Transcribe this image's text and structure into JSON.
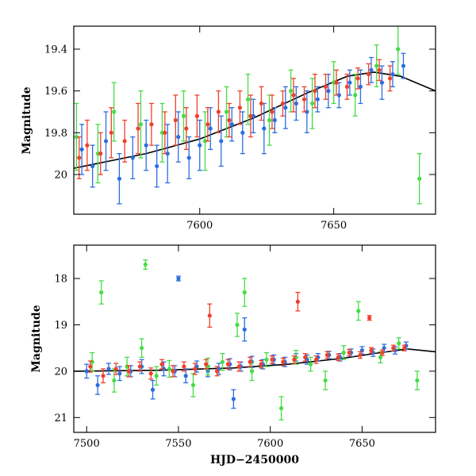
{
  "chart_data": [
    {
      "type": "scatter",
      "title": "",
      "xlabel": "",
      "ylabel": "Magnitude",
      "xlim": [
        7553,
        7688
      ],
      "ylim": [
        20.19,
        19.29
      ],
      "y_inverted": true,
      "grid": false,
      "xticks": [
        7600,
        7650
      ],
      "xtick_labels": [
        "7600",
        "7650"
      ],
      "yticks": [
        19.4,
        19.6,
        19.8,
        20.0
      ],
      "ytick_labels": [
        "19.4",
        "19.6",
        "19.8",
        "20"
      ],
      "series": [
        {
          "color": "#2a6ee0",
          "marker": "circle-with-errorbar",
          "x": [
            7556,
            7560,
            7565,
            7570,
            7575,
            7580,
            7584,
            7588,
            7592,
            7596,
            7600,
            7604,
            7608,
            7612,
            7616,
            7620,
            7624,
            7628,
            7632,
            7636,
            7640,
            7644,
            7648,
            7652,
            7656,
            7660,
            7664,
            7668,
            7672,
            7676
          ],
          "y": [
            19.88,
            19.96,
            19.84,
            20.02,
            19.92,
            19.86,
            19.96,
            19.9,
            19.82,
            19.92,
            19.86,
            19.78,
            19.84,
            19.76,
            19.8,
            19.72,
            19.78,
            19.74,
            19.68,
            19.66,
            19.7,
            19.64,
            19.6,
            19.62,
            19.56,
            19.58,
            19.5,
            19.56,
            19.52,
            19.48
          ],
          "yerr": [
            0.12,
            0.1,
            0.14,
            0.12,
            0.1,
            0.12,
            0.1,
            0.14,
            0.12,
            0.1,
            0.12,
            0.1,
            0.12,
            0.08,
            0.1,
            0.08,
            0.12,
            0.06,
            0.1,
            0.08,
            0.1,
            0.06,
            0.08,
            0.06,
            0.06,
            0.08,
            0.06,
            0.08,
            0.06,
            0.06
          ]
        },
        {
          "color": "#44dd44",
          "marker": "circle-with-errorbar",
          "x": [
            7554,
            7562,
            7568,
            7578,
            7586,
            7594,
            7602,
            7610,
            7618,
            7626,
            7634,
            7642,
            7650,
            7658,
            7666,
            7674,
            7682
          ],
          "y": [
            19.82,
            19.9,
            19.7,
            19.76,
            19.8,
            19.72,
            19.84,
            19.7,
            19.64,
            19.74,
            19.6,
            19.66,
            19.56,
            19.62,
            19.48,
            19.4,
            20.02
          ],
          "yerr": [
            0.16,
            0.14,
            0.14,
            0.16,
            0.14,
            0.12,
            0.14,
            0.12,
            0.12,
            0.12,
            0.1,
            0.12,
            0.1,
            0.1,
            0.1,
            0.12,
            0.12
          ]
        },
        {
          "color": "#f0402a",
          "marker": "circle-with-errorbar",
          "x": [
            7555,
            7558,
            7563,
            7567,
            7572,
            7577,
            7582,
            7587,
            7591,
            7595,
            7599,
            7603,
            7607,
            7611,
            7615,
            7619,
            7623,
            7627,
            7631,
            7635,
            7639,
            7643,
            7647,
            7651,
            7655,
            7659,
            7663,
            7667,
            7671
          ],
          "y": [
            19.92,
            19.86,
            19.9,
            19.8,
            19.84,
            19.78,
            19.76,
            19.8,
            19.74,
            19.78,
            19.72,
            19.76,
            19.7,
            19.74,
            19.68,
            19.72,
            19.66,
            19.7,
            19.66,
            19.62,
            19.64,
            19.6,
            19.58,
            19.56,
            19.58,
            19.54,
            19.52,
            19.5,
            19.54
          ],
          "yerr": [
            0.1,
            0.12,
            0.1,
            0.12,
            0.1,
            0.12,
            0.1,
            0.1,
            0.12,
            0.1,
            0.1,
            0.08,
            0.1,
            0.08,
            0.08,
            0.1,
            0.08,
            0.08,
            0.06,
            0.08,
            0.06,
            0.08,
            0.06,
            0.06,
            0.06,
            0.05,
            0.05,
            0.05,
            0.06
          ]
        }
      ],
      "model_curve": {
        "color": "#000000",
        "x": [
          7553,
          7580,
          7600,
          7620,
          7640,
          7655,
          7665,
          7675,
          7688
        ],
        "y": [
          19.97,
          19.9,
          19.83,
          19.73,
          19.61,
          19.53,
          19.51,
          19.53,
          19.6
        ]
      }
    },
    {
      "type": "scatter",
      "title": "",
      "xlabel": "HJD−2450000",
      "ylabel": "Magnitude",
      "xlim": [
        7493,
        7690
      ],
      "ylim": [
        21.32,
        17.28
      ],
      "y_inverted": true,
      "grid": false,
      "xticks": [
        7500,
        7550,
        7600,
        7650
      ],
      "xtick_labels": [
        "7500",
        "7550",
        "7600",
        "7650"
      ],
      "yticks": [
        18,
        19,
        20,
        21
      ],
      "ytick_labels": [
        "18",
        "19",
        "20",
        "21"
      ],
      "series": [
        {
          "color": "#2a6ee0",
          "marker": "circle-with-errorbar",
          "x": [
            7500,
            7506,
            7512,
            7518,
            7524,
            7530,
            7536,
            7542,
            7548,
            7554,
            7560,
            7566,
            7572,
            7578,
            7584,
            7590,
            7596,
            7602,
            7608,
            7614,
            7620,
            7626,
            7632,
            7638,
            7644,
            7650,
            7656,
            7662,
            7668,
            7674,
            7550,
            7580,
            7586
          ],
          "y": [
            20.0,
            20.3,
            19.95,
            20.05,
            20.0,
            19.9,
            20.4,
            19.95,
            20.0,
            20.1,
            19.9,
            20.0,
            19.95,
            19.85,
            19.9,
            19.8,
            19.85,
            19.75,
            19.8,
            19.7,
            19.75,
            19.7,
            19.65,
            19.7,
            19.6,
            19.55,
            19.6,
            19.5,
            19.55,
            19.45,
            18.0,
            20.6,
            19.1
          ],
          "yerr": [
            0.15,
            0.2,
            0.12,
            0.15,
            0.12,
            0.15,
            0.2,
            0.15,
            0.12,
            0.15,
            0.12,
            0.12,
            0.12,
            0.12,
            0.1,
            0.12,
            0.1,
            0.1,
            0.1,
            0.08,
            0.1,
            0.08,
            0.08,
            0.08,
            0.08,
            0.08,
            0.08,
            0.08,
            0.08,
            0.08,
            0.05,
            0.2,
            0.25
          ]
        },
        {
          "color": "#44dd44",
          "marker": "circle-with-errorbar",
          "x": [
            7503,
            7508,
            7515,
            7522,
            7530,
            7532,
            7538,
            7545,
            7558,
            7566,
            7574,
            7582,
            7586,
            7590,
            7598,
            7606,
            7614,
            7622,
            7630,
            7640,
            7648,
            7660,
            7670,
            7680
          ],
          "y": [
            19.8,
            18.3,
            20.2,
            19.9,
            19.5,
            17.7,
            20.1,
            19.95,
            20.3,
            19.9,
            19.8,
            19.0,
            18.3,
            20.0,
            19.75,
            20.8,
            19.7,
            19.85,
            20.2,
            19.6,
            18.7,
            19.7,
            19.4,
            20.2
          ],
          "yerr": [
            0.2,
            0.25,
            0.25,
            0.2,
            0.2,
            0.1,
            0.2,
            0.18,
            0.25,
            0.18,
            0.18,
            0.25,
            0.3,
            0.2,
            0.15,
            0.25,
            0.15,
            0.15,
            0.2,
            0.15,
            0.2,
            0.12,
            0.12,
            0.2
          ]
        },
        {
          "color": "#f0402a",
          "marker": "circle-with-errorbar",
          "x": [
            7502,
            7509,
            7516,
            7523,
            7529,
            7535,
            7541,
            7547,
            7553,
            7559,
            7565,
            7567,
            7571,
            7577,
            7583,
            7589,
            7595,
            7601,
            7607,
            7613,
            7615,
            7619,
            7625,
            7631,
            7637,
            7643,
            7649,
            7654,
            7655,
            7661,
            7667,
            7673
          ],
          "y": [
            19.9,
            20.1,
            19.95,
            20.0,
            19.9,
            20.05,
            19.85,
            20.0,
            19.9,
            19.95,
            19.85,
            18.8,
            20.0,
            19.85,
            19.9,
            19.8,
            19.85,
            19.75,
            19.8,
            19.75,
            18.5,
            19.7,
            19.75,
            19.65,
            19.7,
            19.6,
            19.65,
            18.85,
            19.55,
            19.6,
            19.5,
            19.5
          ],
          "yerr": [
            0.12,
            0.15,
            0.12,
            0.12,
            0.1,
            0.12,
            0.1,
            0.12,
            0.1,
            0.12,
            0.1,
            0.25,
            0.1,
            0.1,
            0.1,
            0.1,
            0.08,
            0.08,
            0.08,
            0.08,
            0.2,
            0.08,
            0.08,
            0.07,
            0.07,
            0.07,
            0.07,
            0.05,
            0.06,
            0.06,
            0.06,
            0.06
          ]
        }
      ],
      "model_curve": {
        "color": "#000000",
        "x": [
          7493,
          7540,
          7580,
          7610,
          7640,
          7660,
          7675,
          7690
        ],
        "y": [
          20.0,
          19.98,
          19.93,
          19.85,
          19.72,
          19.6,
          19.52,
          19.58
        ]
      }
    }
  ]
}
